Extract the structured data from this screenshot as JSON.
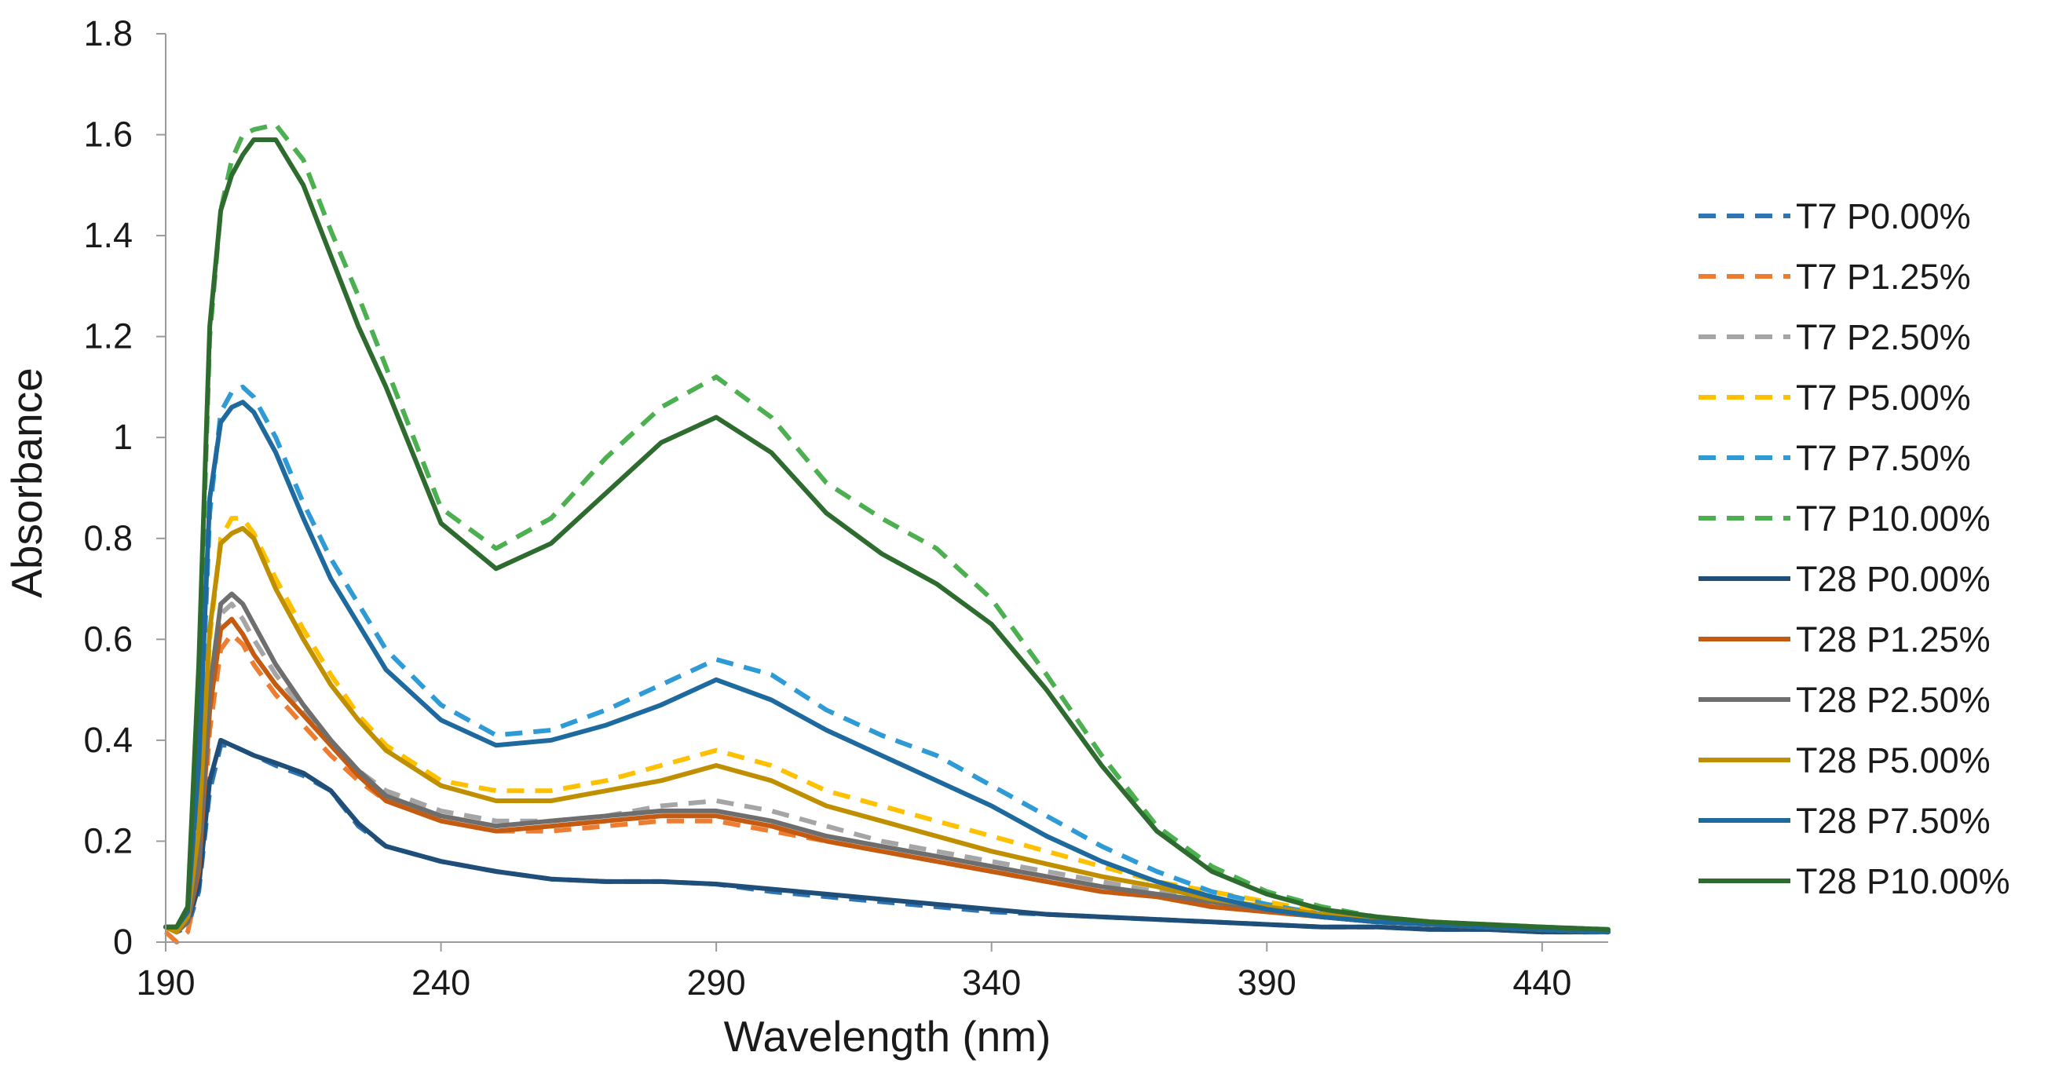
{
  "chart_data": {
    "type": "line",
    "title": "",
    "xlabel": "Wavelength (nm)",
    "ylabel": "Absorbance",
    "xlim": [
      190,
      452
    ],
    "ylim": [
      0,
      1.8
    ],
    "xticks": [
      190,
      240,
      290,
      340,
      390,
      440
    ],
    "xtick_labels": [
      "190",
      "240",
      "290",
      "340",
      "390",
      "440"
    ],
    "yticks": [
      0,
      0.2,
      0.4,
      0.6,
      0.8,
      1,
      1.2,
      1.4,
      1.6,
      1.8
    ],
    "ytick_labels": [
      "0",
      "0.2",
      "0.4",
      "0.6",
      "0.8",
      "1",
      "1.2",
      "1.4",
      "1.6",
      "1.8"
    ],
    "grid": false,
    "legend_position": "right",
    "x": [
      190,
      192,
      194,
      196,
      198,
      200,
      202,
      204,
      206,
      210,
      215,
      220,
      225,
      230,
      240,
      250,
      260,
      270,
      280,
      290,
      300,
      310,
      320,
      330,
      340,
      350,
      360,
      370,
      380,
      390,
      400,
      410,
      420,
      430,
      440,
      452
    ],
    "series": [
      {
        "name": "T7 P0.00%",
        "color": "#2E75B6",
        "dash": true,
        "values": [
          0.03,
          0.02,
          0.03,
          0.1,
          0.3,
          0.39,
          0.39,
          0.38,
          0.37,
          0.35,
          0.33,
          0.3,
          0.23,
          0.19,
          0.16,
          0.14,
          0.125,
          0.12,
          0.12,
          0.115,
          0.1,
          0.09,
          0.08,
          0.07,
          0.06,
          0.055,
          0.05,
          0.045,
          0.04,
          0.035,
          0.03,
          0.03,
          0.025,
          0.025,
          0.02,
          0.02
        ]
      },
      {
        "name": "T7 P1.25%",
        "color": "#ED7D31",
        "dash": true,
        "values": [
          0.02,
          0.0,
          0.02,
          0.12,
          0.42,
          0.58,
          0.61,
          0.59,
          0.55,
          0.49,
          0.43,
          0.37,
          0.32,
          0.28,
          0.24,
          0.22,
          0.22,
          0.23,
          0.24,
          0.24,
          0.22,
          0.2,
          0.18,
          0.16,
          0.14,
          0.12,
          0.1,
          0.09,
          0.07,
          0.06,
          0.05,
          0.04,
          0.035,
          0.03,
          0.025,
          0.02
        ]
      },
      {
        "name": "T7 P2.50%",
        "color": "#A5A5A5",
        "dash": true,
        "values": [
          0.03,
          0.02,
          0.04,
          0.15,
          0.5,
          0.65,
          0.67,
          0.64,
          0.6,
          0.53,
          0.46,
          0.4,
          0.34,
          0.3,
          0.26,
          0.24,
          0.24,
          0.25,
          0.27,
          0.28,
          0.26,
          0.23,
          0.2,
          0.18,
          0.16,
          0.14,
          0.12,
          0.1,
          0.08,
          0.07,
          0.055,
          0.045,
          0.04,
          0.03,
          0.025,
          0.02
        ]
      },
      {
        "name": "T7 P5.00%",
        "color": "#FFC000",
        "dash": true,
        "values": [
          0.03,
          0.02,
          0.04,
          0.2,
          0.6,
          0.8,
          0.84,
          0.84,
          0.81,
          0.72,
          0.62,
          0.53,
          0.45,
          0.39,
          0.32,
          0.3,
          0.3,
          0.32,
          0.35,
          0.38,
          0.35,
          0.3,
          0.27,
          0.24,
          0.21,
          0.18,
          0.15,
          0.12,
          0.1,
          0.08,
          0.06,
          0.05,
          0.04,
          0.035,
          0.03,
          0.02
        ]
      },
      {
        "name": "T7 P7.50%",
        "color": "#2E9BD6",
        "dash": true,
        "values": [
          0.03,
          0.03,
          0.05,
          0.3,
          0.85,
          1.05,
          1.09,
          1.1,
          1.08,
          1.0,
          0.87,
          0.76,
          0.67,
          0.58,
          0.47,
          0.41,
          0.42,
          0.46,
          0.51,
          0.56,
          0.53,
          0.46,
          0.41,
          0.37,
          0.31,
          0.25,
          0.19,
          0.14,
          0.1,
          0.075,
          0.055,
          0.045,
          0.035,
          0.03,
          0.025,
          0.02
        ]
      },
      {
        "name": "T7 P10.00%",
        "color": "#4CAF50",
        "dash": true,
        "values": [
          0.03,
          0.03,
          0.06,
          0.5,
          1.2,
          1.45,
          1.55,
          1.6,
          1.61,
          1.62,
          1.55,
          1.41,
          1.28,
          1.14,
          0.86,
          0.78,
          0.84,
          0.96,
          1.06,
          1.12,
          1.04,
          0.91,
          0.84,
          0.78,
          0.68,
          0.53,
          0.37,
          0.23,
          0.15,
          0.1,
          0.07,
          0.05,
          0.04,
          0.035,
          0.03,
          0.025
        ]
      },
      {
        "name": "T28 P0.00%",
        "color": "#1F4E79",
        "dash": false,
        "values": [
          0.03,
          0.02,
          0.04,
          0.11,
          0.32,
          0.4,
          0.39,
          0.38,
          0.37,
          0.355,
          0.335,
          0.3,
          0.235,
          0.19,
          0.16,
          0.14,
          0.125,
          0.12,
          0.12,
          0.115,
          0.105,
          0.095,
          0.085,
          0.075,
          0.065,
          0.055,
          0.05,
          0.045,
          0.04,
          0.035,
          0.03,
          0.03,
          0.025,
          0.025,
          0.02,
          0.02
        ]
      },
      {
        "name": "T28 P1.25%",
        "color": "#C55A11",
        "dash": false,
        "values": [
          0.03,
          0.02,
          0.04,
          0.14,
          0.46,
          0.62,
          0.64,
          0.61,
          0.57,
          0.51,
          0.45,
          0.39,
          0.33,
          0.28,
          0.24,
          0.22,
          0.23,
          0.24,
          0.25,
          0.25,
          0.23,
          0.2,
          0.18,
          0.16,
          0.14,
          0.12,
          0.1,
          0.09,
          0.07,
          0.06,
          0.05,
          0.04,
          0.035,
          0.03,
          0.025,
          0.02
        ]
      },
      {
        "name": "T28 P2.50%",
        "color": "#6E6E6E",
        "dash": false,
        "values": [
          0.03,
          0.02,
          0.04,
          0.16,
          0.5,
          0.67,
          0.69,
          0.67,
          0.63,
          0.55,
          0.47,
          0.4,
          0.34,
          0.29,
          0.25,
          0.23,
          0.24,
          0.25,
          0.26,
          0.26,
          0.24,
          0.21,
          0.19,
          0.17,
          0.15,
          0.13,
          0.11,
          0.095,
          0.08,
          0.065,
          0.05,
          0.04,
          0.035,
          0.03,
          0.025,
          0.02
        ]
      },
      {
        "name": "T28 P5.00%",
        "color": "#BF8F00",
        "dash": false,
        "values": [
          0.03,
          0.02,
          0.05,
          0.22,
          0.62,
          0.79,
          0.81,
          0.82,
          0.8,
          0.7,
          0.6,
          0.51,
          0.44,
          0.38,
          0.31,
          0.28,
          0.28,
          0.3,
          0.32,
          0.35,
          0.32,
          0.27,
          0.24,
          0.21,
          0.18,
          0.155,
          0.13,
          0.11,
          0.085,
          0.07,
          0.055,
          0.045,
          0.035,
          0.03,
          0.025,
          0.02
        ]
      },
      {
        "name": "T28 P7.50%",
        "color": "#1E6A9E",
        "dash": false,
        "values": [
          0.03,
          0.03,
          0.06,
          0.35,
          0.88,
          1.03,
          1.06,
          1.07,
          1.05,
          0.97,
          0.84,
          0.72,
          0.63,
          0.54,
          0.44,
          0.39,
          0.4,
          0.43,
          0.47,
          0.52,
          0.48,
          0.42,
          0.37,
          0.32,
          0.27,
          0.21,
          0.16,
          0.12,
          0.09,
          0.065,
          0.05,
          0.04,
          0.035,
          0.03,
          0.025,
          0.02
        ]
      },
      {
        "name": "T28 P10.00%",
        "color": "#2E6B2E",
        "dash": false,
        "values": [
          0.03,
          0.03,
          0.07,
          0.55,
          1.22,
          1.45,
          1.52,
          1.56,
          1.59,
          1.59,
          1.5,
          1.36,
          1.22,
          1.1,
          0.83,
          0.74,
          0.79,
          0.89,
          0.99,
          1.04,
          0.97,
          0.85,
          0.77,
          0.71,
          0.63,
          0.5,
          0.35,
          0.22,
          0.14,
          0.095,
          0.065,
          0.05,
          0.04,
          0.035,
          0.03,
          0.025
        ]
      }
    ]
  }
}
